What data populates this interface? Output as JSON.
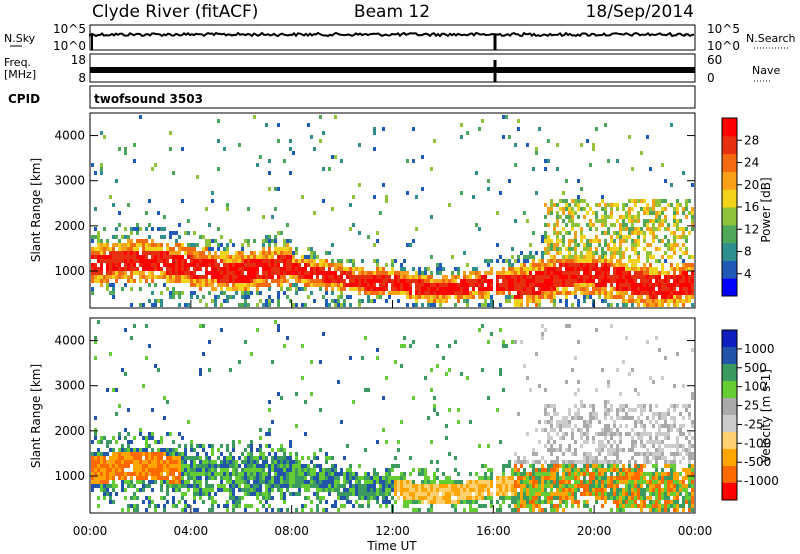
{
  "header": {
    "station": "Clyde River (fitACF)",
    "beam": "Beam 12",
    "date": "18/Sep/2014"
  },
  "strip_labels": {
    "nsky": "N.Sky",
    "nsky_top": "10^5",
    "nsky_bottom": "10^0",
    "nsearch": "N.Search",
    "nsearch_top": "10^5",
    "nsearch_bottom": "10^0",
    "freq_line1": "Freq.",
    "freq_line2": "[MHz]",
    "freq_top": "18",
    "freq_bottom": "8",
    "nave": "Nave",
    "nave_top": "60",
    "nave_bottom": "0",
    "cpid": "CPID",
    "cpid_value": "twofsound 3503"
  },
  "colors": {
    "power_scale": [
      "#0000ff",
      "#1f5ab8",
      "#2f8f8f",
      "#4fa85a",
      "#8fc43a",
      "#f2d21a",
      "#f7a018",
      "#f36a10",
      "#e63010",
      "#ff0000"
    ],
    "velocity_scale": [
      "#ff0000",
      "#ff6a00",
      "#ffa500",
      "#ffd070",
      "#cccccc",
      "#aaaaaa",
      "#66cc33",
      "#3a9a60",
      "#2255aa",
      "#1020c0"
    ]
  },
  "chart_data": [
    {
      "type": "heatmap",
      "name": "power",
      "ylabel": "Slant Range [km]",
      "yticks": [
        "1000",
        "2000",
        "3000",
        "4000"
      ],
      "ylim": [
        180,
        4500
      ],
      "colorbar_label": "Power [dB]",
      "colorbar_ticks": [
        "4",
        "8",
        "12",
        "16",
        "20",
        "24",
        "28"
      ],
      "colorbar_range": [
        0,
        30
      ]
    },
    {
      "type": "heatmap",
      "name": "velocity",
      "ylabel": "Slant Range [km]",
      "yticks": [
        "1000",
        "2000",
        "3000",
        "4000"
      ],
      "ylim": [
        180,
        4500
      ],
      "xlabel": "Time UT",
      "xticks": [
        "00:00",
        "04:00",
        "08:00",
        "12:00",
        "16:00",
        "20:00",
        "00:00"
      ],
      "colorbar_label": "Velocity [m s-1]",
      "colorbar_ticks": [
        "1000",
        "500",
        "100",
        "25",
        "-25",
        "-100",
        "-500",
        "-1000"
      ]
    }
  ]
}
